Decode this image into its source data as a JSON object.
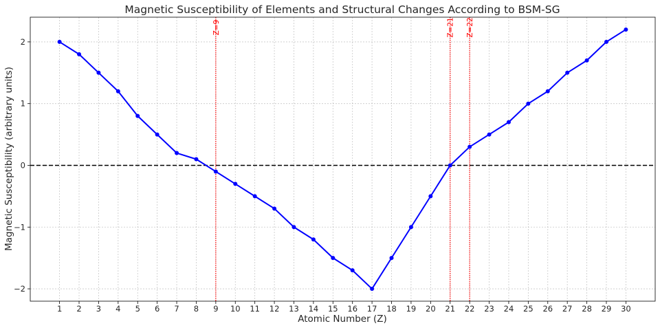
{
  "chart_data": {
    "type": "line",
    "title": "Magnetic Susceptibility of Elements and Structural Changes According to BSM-SG",
    "xlabel": "Atomic Number (Z)",
    "ylabel": "Magnetic Susceptibility (arbitrary units)",
    "x": [
      1,
      2,
      3,
      4,
      5,
      6,
      7,
      8,
      9,
      10,
      11,
      12,
      13,
      14,
      15,
      16,
      17,
      18,
      19,
      20,
      21,
      22,
      23,
      24,
      25,
      26,
      27,
      28,
      29,
      30
    ],
    "series": [
      {
        "name": "",
        "color": "#0000ff",
        "values": [
          2.0,
          1.8,
          1.5,
          1.2,
          0.8,
          0.5,
          0.2,
          0.1,
          -0.1,
          -0.3,
          -0.5,
          -0.7,
          -1.0,
          -1.2,
          -1.5,
          -1.7,
          -2.0,
          -1.5,
          -1.0,
          -0.5,
          0.0,
          0.3,
          0.5,
          0.7,
          1.0,
          1.2,
          1.5,
          1.7,
          2.0,
          2.2
        ]
      }
    ],
    "xlim": [
      -0.5,
      31.5
    ],
    "ylim": [
      -2.2,
      2.4
    ],
    "xticks": [
      1,
      2,
      3,
      4,
      5,
      6,
      7,
      8,
      9,
      10,
      11,
      12,
      13,
      14,
      15,
      16,
      17,
      18,
      19,
      20,
      21,
      22,
      23,
      24,
      25,
      26,
      27,
      28,
      29,
      30
    ],
    "yticks": [
      {
        "value": 2,
        "label": "2"
      },
      {
        "value": 1,
        "label": "1"
      },
      {
        "value": 0,
        "label": "0"
      },
      {
        "value": -1,
        "label": "−1"
      },
      {
        "value": -2,
        "label": "−2"
      }
    ],
    "grid": true,
    "reference_line": {
      "y": 0,
      "style": "dashed",
      "color": "#000000"
    },
    "vertical_lines": [
      {
        "x": 9,
        "label": "Z=9",
        "color": "#ff0000"
      },
      {
        "x": 21,
        "label": "Z=21",
        "color": "#ff0000"
      },
      {
        "x": 22,
        "label": "Z=22",
        "color": "#ff0000"
      }
    ]
  }
}
